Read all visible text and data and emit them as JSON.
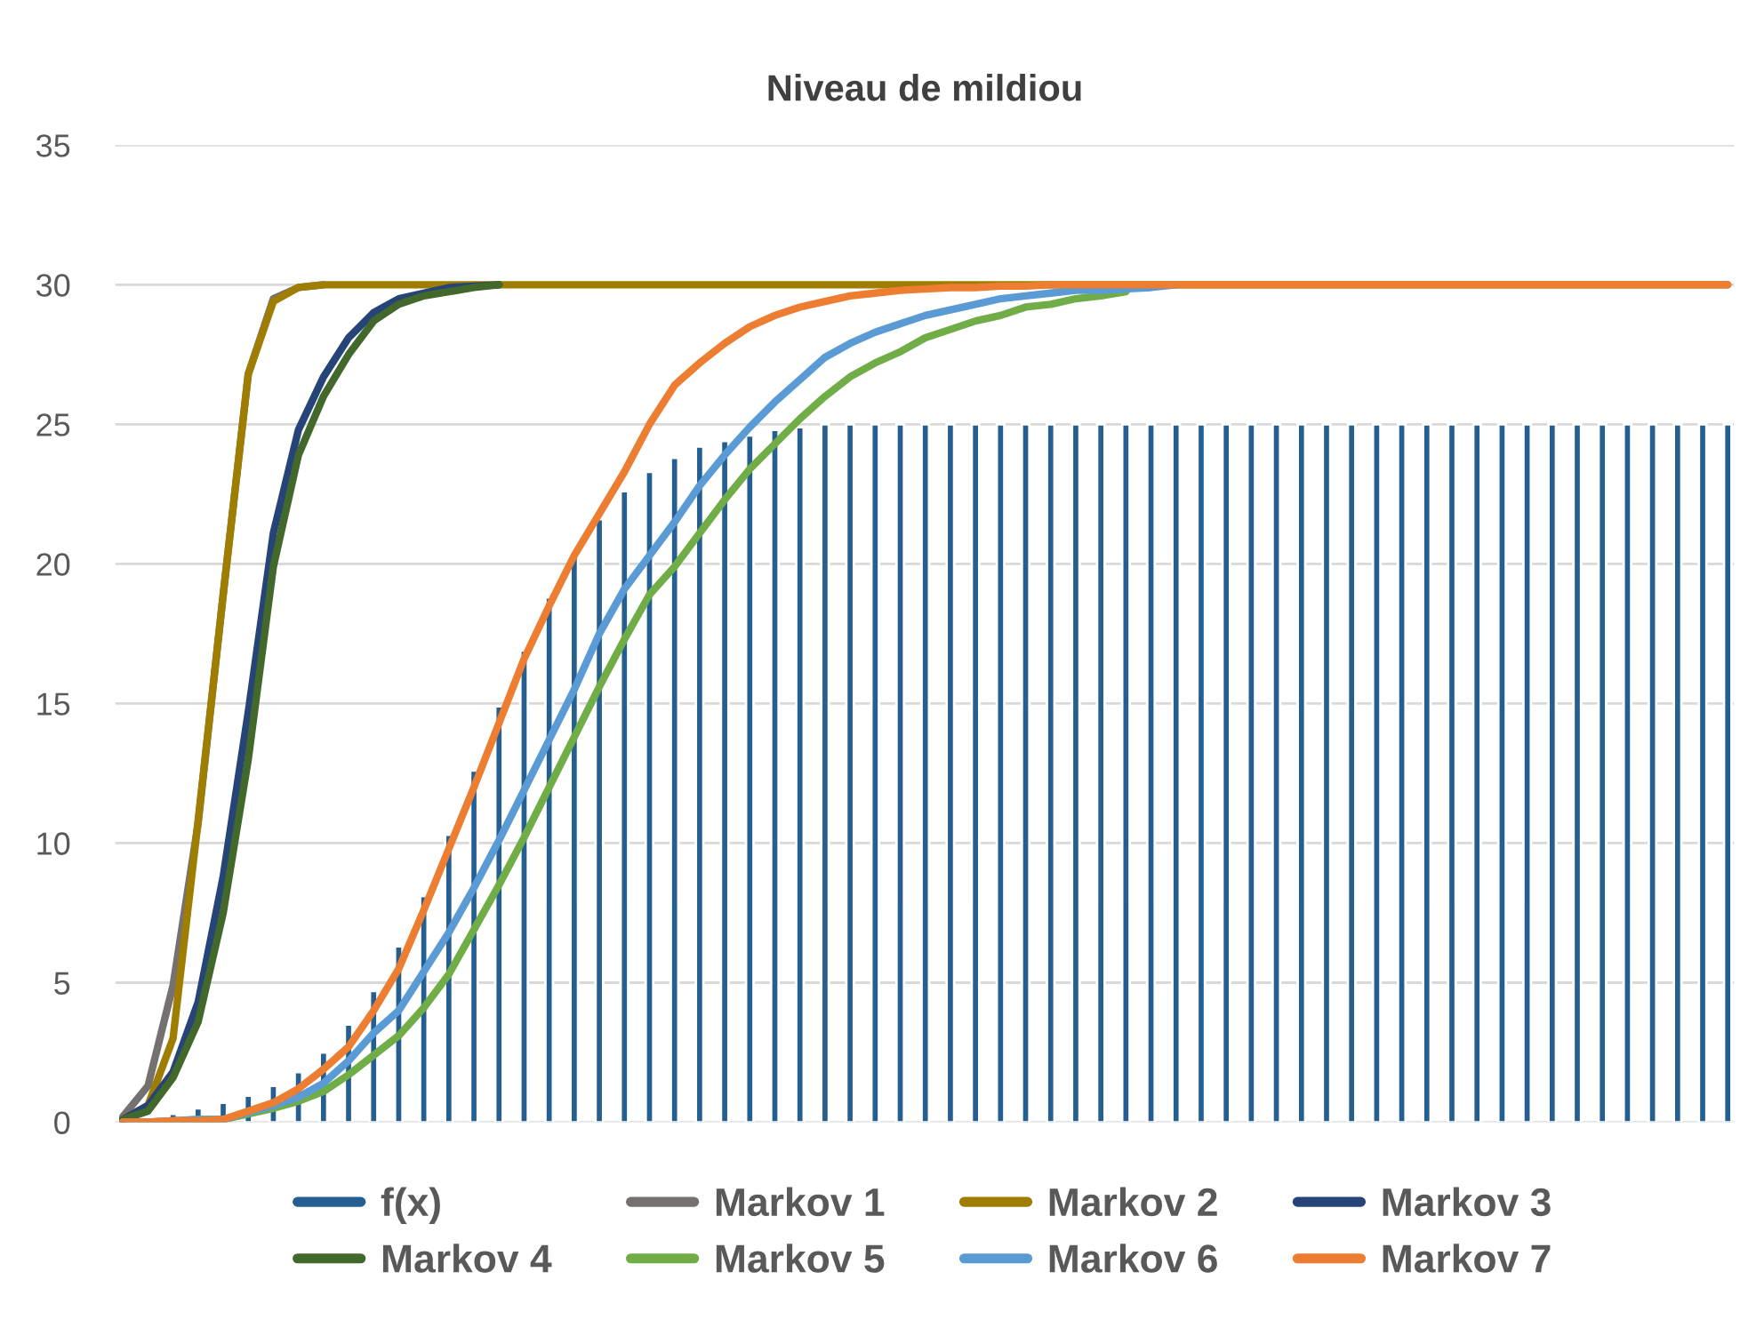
{
  "chart_data": {
    "type": "line",
    "title": "Niveau de mildiou",
    "categories": [
      null,
      null,
      null,
      null,
      null,
      null,
      null,
      null,
      null,
      null,
      null,
      null,
      null,
      null,
      null,
      null,
      null,
      null,
      null,
      null,
      null,
      null,
      null,
      null,
      null,
      null,
      null,
      null,
      null,
      null,
      null,
      null,
      null,
      null,
      null,
      null,
      null,
      null,
      null,
      null,
      null,
      null,
      null,
      null,
      null,
      null,
      null,
      null,
      null,
      null,
      null,
      null,
      null,
      null,
      null,
      null,
      null,
      null,
      null,
      null,
      null,
      null,
      null,
      null,
      null
    ],
    "ylim": [
      0,
      35
    ],
    "yticks": [
      0,
      5,
      10,
      15,
      20,
      25,
      30,
      35
    ],
    "grid": "y",
    "legend": "bottom",
    "marker": "none",
    "line_style": "solid",
    "series": [
      {
        "name": "f(x)",
        "type": "bar",
        "color": "#255e91",
        "values": [
          null,
          null,
          0.3,
          0.5,
          0.7,
          0.95,
          1.3,
          1.8,
          2.5,
          3.5,
          4.7,
          6.3,
          8.1,
          10.3,
          12.6,
          14.9,
          16.9,
          18.8,
          20.3,
          21.6,
          22.6,
          23.3,
          23.8,
          24.2,
          24.4,
          24.6,
          24.8,
          24.9,
          25,
          25,
          25,
          25,
          25,
          25,
          25,
          25,
          25,
          25,
          25,
          25,
          25,
          25,
          25,
          25,
          25,
          25,
          25,
          25,
          25,
          25,
          25,
          25,
          25,
          25,
          25,
          25,
          25,
          25,
          25,
          25,
          25,
          25,
          25,
          25,
          25
        ]
      },
      {
        "name": "Markov 1",
        "color": "#767171",
        "values": [
          0.2,
          1.3,
          4.9,
          10.7,
          18.9,
          26.8,
          29.5,
          29.9,
          30,
          null,
          null,
          null,
          null,
          null,
          null,
          null,
          null,
          null,
          null,
          null,
          null,
          null,
          null,
          null,
          null,
          null,
          null,
          null,
          null,
          null,
          null,
          null,
          null,
          null,
          null,
          null,
          null,
          null,
          null,
          null,
          null,
          null,
          null,
          null,
          null,
          null,
          null,
          null,
          null,
          null,
          null,
          null,
          null,
          null,
          null,
          null,
          null,
          null,
          null,
          null,
          null,
          null,
          null,
          null,
          null
        ]
      },
      {
        "name": "Markov 2",
        "color": "#9e7d00",
        "values": [
          0.1,
          0.6,
          3.0,
          10.8,
          18.9,
          26.8,
          29.4,
          29.9,
          30,
          30,
          30,
          30,
          30,
          30,
          30,
          30,
          30,
          30,
          30,
          30,
          30,
          30,
          30,
          30,
          30,
          30,
          30,
          30,
          30,
          30,
          30,
          30,
          30,
          30,
          30,
          30,
          30,
          30,
          30,
          30,
          30,
          30,
          30,
          30,
          30,
          30,
          30,
          30,
          30,
          30,
          30,
          30,
          30,
          30,
          30,
          30,
          30,
          30,
          30,
          30,
          30,
          30,
          30,
          30,
          30
        ]
      },
      {
        "name": "Markov 3",
        "color": "#264478",
        "values": [
          0.1,
          0.6,
          1.8,
          4.3,
          8.8,
          14.7,
          21.1,
          24.8,
          26.7,
          28.1,
          29.0,
          29.5,
          29.7,
          29.9,
          29.95,
          30,
          null,
          null,
          null,
          null,
          null,
          null,
          null,
          null,
          null,
          null,
          null,
          null,
          null,
          null,
          null,
          null,
          null,
          null,
          null,
          null,
          null,
          null,
          null,
          null,
          null,
          null,
          null,
          null,
          null,
          null,
          null,
          null,
          null,
          null,
          null,
          null,
          null,
          null,
          null,
          null,
          null,
          null,
          null,
          null,
          null,
          null,
          null,
          null,
          null
        ]
      },
      {
        "name": "Markov 4",
        "color": "#43682b",
        "values": [
          0.1,
          0.4,
          1.6,
          3.6,
          7.5,
          13.0,
          19.9,
          23.9,
          26.0,
          27.5,
          28.7,
          29.3,
          29.6,
          29.75,
          29.9,
          30,
          null,
          null,
          null,
          null,
          null,
          null,
          null,
          null,
          null,
          null,
          null,
          null,
          null,
          null,
          null,
          null,
          null,
          null,
          null,
          null,
          null,
          null,
          null,
          null,
          null,
          null,
          null,
          null,
          null,
          null,
          null,
          null,
          null,
          null,
          null,
          null,
          null,
          null,
          null,
          null,
          null,
          null,
          null,
          null,
          null,
          null,
          null,
          null,
          null
        ]
      },
      {
        "name": "Markov 5",
        "color": "#70ad47",
        "values": [
          0,
          0,
          0.05,
          0.1,
          0.1,
          0.3,
          0.5,
          0.75,
          1.1,
          1.7,
          2.4,
          3.1,
          4.1,
          5.3,
          6.9,
          8.5,
          10.2,
          12.0,
          13.8,
          15.6,
          17.3,
          18.9,
          19.9,
          21.1,
          22.3,
          23.4,
          24.3,
          25.2,
          26.0,
          26.7,
          27.2,
          27.6,
          28.1,
          28.4,
          28.7,
          28.9,
          29.2,
          29.3,
          29.5,
          29.6,
          29.75,
          null,
          null,
          null,
          null,
          null,
          null,
          null,
          null,
          null,
          null,
          null,
          null,
          null,
          null,
          null,
          null,
          null,
          null,
          null,
          null,
          null,
          null,
          null,
          null
        ]
      },
      {
        "name": "Markov 6",
        "color": "#5b9bd5",
        "values": [
          0,
          0,
          0.05,
          0.1,
          0.1,
          0.35,
          0.6,
          0.9,
          1.4,
          2.2,
          3.2,
          4.0,
          5.4,
          6.8,
          8.4,
          10.1,
          11.9,
          13.7,
          15.5,
          17.5,
          19.1,
          20.3,
          21.5,
          22.8,
          23.9,
          24.9,
          25.8,
          26.6,
          27.4,
          27.9,
          28.3,
          28.6,
          28.9,
          29.1,
          29.3,
          29.5,
          29.6,
          29.7,
          29.8,
          29.8,
          29.85,
          29.9,
          30,
          null,
          null,
          null,
          null,
          null,
          null,
          null,
          null,
          null,
          null,
          null,
          null,
          null,
          null,
          null,
          null,
          null,
          null,
          null,
          null,
          null,
          null
        ]
      },
      {
        "name": "Markov 7",
        "color": "#ed7d31",
        "values": [
          0,
          0,
          0.05,
          0.05,
          0.1,
          0.4,
          0.7,
          1.2,
          1.9,
          2.7,
          4.0,
          5.5,
          7.6,
          9.8,
          12.0,
          14.3,
          16.6,
          18.5,
          20.3,
          21.8,
          23.3,
          25.0,
          26.4,
          27.2,
          27.9,
          28.5,
          28.9,
          29.2,
          29.4,
          29.6,
          29.7,
          29.8,
          29.85,
          29.9,
          29.9,
          29.95,
          29.95,
          30,
          30,
          30,
          30,
          30,
          30,
          30,
          30,
          30,
          30,
          30,
          30,
          30,
          30,
          30,
          30,
          30,
          30,
          30,
          30,
          30,
          30,
          30,
          30,
          30,
          30,
          30,
          30
        ]
      }
    ]
  }
}
